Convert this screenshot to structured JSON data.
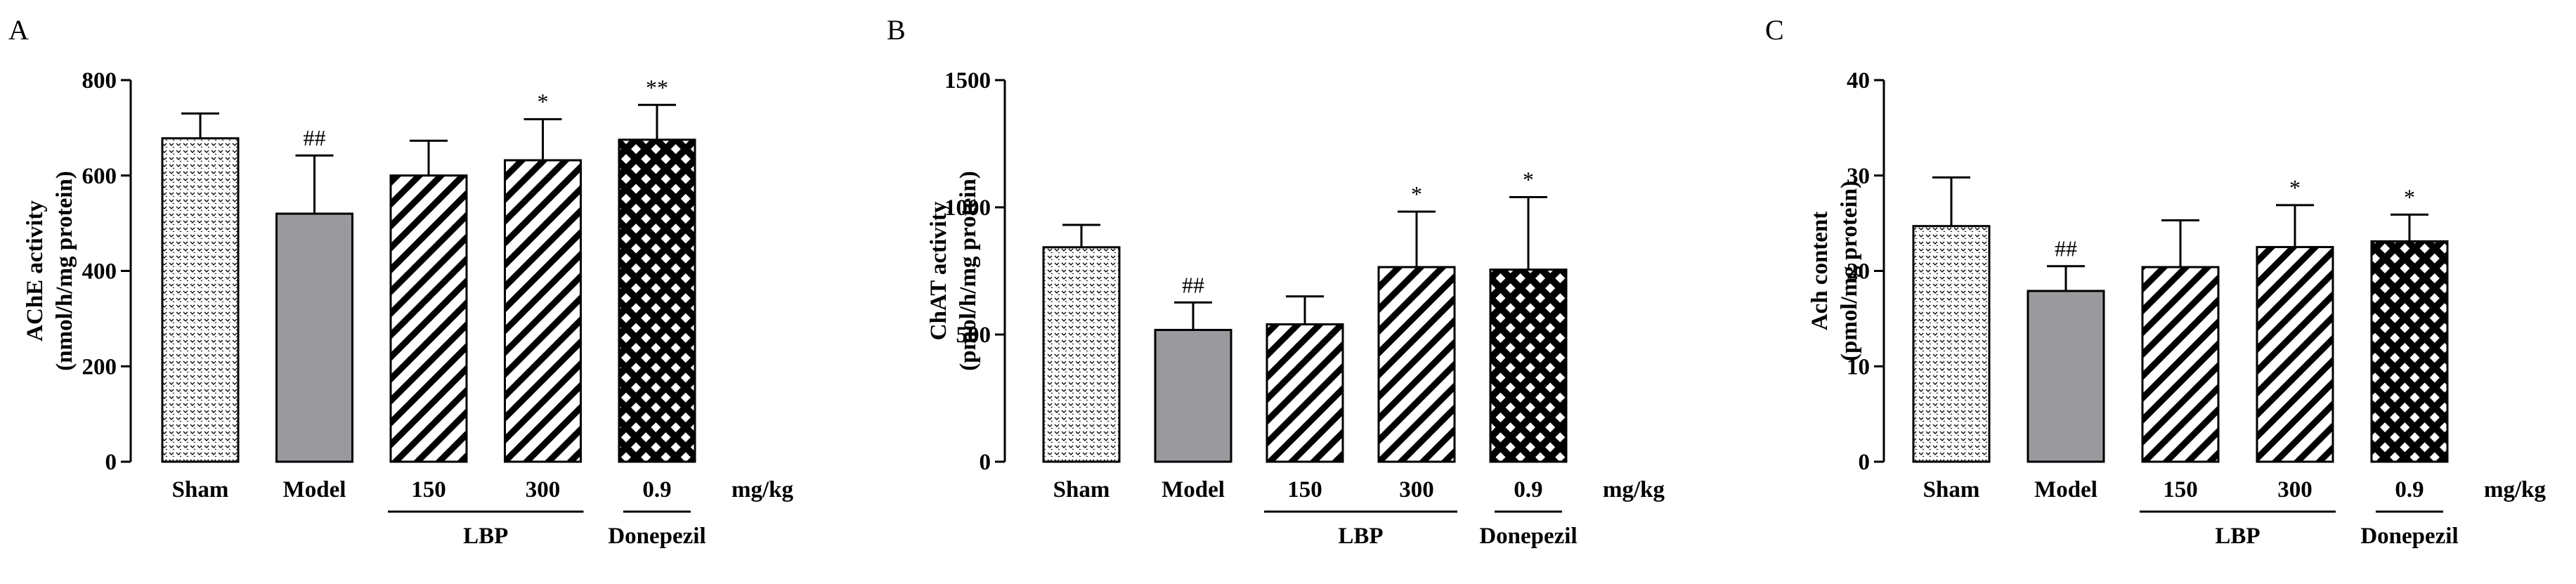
{
  "figure": {
    "chart_data": [
      {
        "panel": "A",
        "type": "bar",
        "ylabel": "AChE activity",
        "ylabel_unit": "(nmol/h/mg protein)",
        "ylim": [
          0,
          800
        ],
        "yticks": [
          "0",
          "200",
          "400",
          "600",
          "800"
        ],
        "categories": [
          "Sham",
          "Model",
          "150",
          "300",
          "0.9"
        ],
        "values": [
          678,
          520,
          600,
          632,
          675
        ],
        "errors": [
          52,
          122,
          73,
          86,
          73
        ],
        "significance": [
          "",
          "##",
          "",
          "*",
          "**"
        ]
      },
      {
        "panel": "B",
        "type": "bar",
        "ylabel": "ChAT activity",
        "ylabel_unit": "(pmol/h/mg protein)",
        "ylim": [
          0,
          1500
        ],
        "yticks": [
          "0",
          "500",
          "1000",
          "1500"
        ],
        "categories": [
          "Sham",
          "Model",
          "150",
          "300",
          "0.9"
        ],
        "values": [
          843,
          518,
          540,
          765,
          755
        ],
        "errors": [
          88,
          108,
          110,
          218,
          285
        ],
        "significance": [
          "",
          "##",
          "",
          "*",
          "*"
        ]
      },
      {
        "panel": "C",
        "type": "bar",
        "ylabel": "Ach content",
        "ylabel_unit": "(pmol/mg protein)",
        "ylim": [
          0,
          40
        ],
        "yticks": [
          "0",
          "10",
          "20",
          "30",
          "40"
        ],
        "categories": [
          "Sham",
          "Model",
          "150",
          "300",
          "0.9"
        ],
        "values": [
          24.7,
          17.9,
          20.4,
          22.5,
          23.1
        ],
        "errors": [
          5.1,
          2.6,
          4.9,
          4.4,
          2.8
        ],
        "significance": [
          "",
          "##",
          "",
          "*",
          "*"
        ]
      }
    ],
    "unit_label": "mg/kg",
    "group_labels": {
      "lbp": "LBP",
      "donepezil": "Donepezil"
    },
    "bar_styles": [
      "dots",
      "solid-gray",
      "hatch",
      "hatch",
      "crosshatch"
    ],
    "colors": {
      "model_fill": "#9a9a9e",
      "ink": "#000000"
    }
  }
}
